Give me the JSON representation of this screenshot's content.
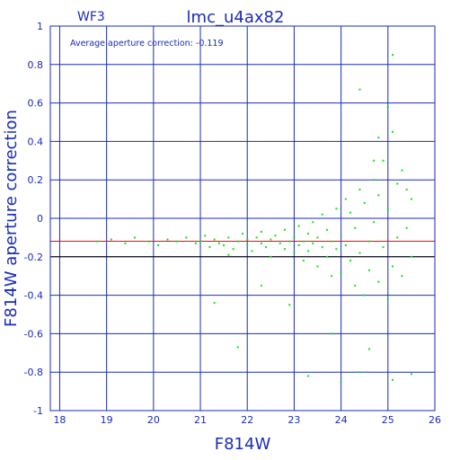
{
  "chart_data": {
    "type": "scatter",
    "title": "lmc_u4ax82",
    "camera_label": "WF3",
    "annotation": "Average aperture correction:  -0.119",
    "xlabel": "F814W",
    "ylabel": "F814W  aperture  correction",
    "xlim": [
      17.8,
      26
    ],
    "ylim": [
      -1,
      1
    ],
    "x_ticks": [
      "18",
      "19",
      "20",
      "21",
      "22",
      "23",
      "24",
      "25",
      "26"
    ],
    "y_ticks": [
      "1",
      "0.8",
      "0.6",
      "0.4",
      "0.2",
      "0",
      "-0.2",
      "-0.4",
      "-0.6",
      "-0.8",
      "-1"
    ],
    "grid": true,
    "reference_line": {
      "y": -0.119,
      "color": "#ff0000"
    },
    "highlight_line": {
      "y": -0.2,
      "color": "#000000"
    },
    "colors": {
      "axis": "#1a2bb8",
      "points": "#00ee00"
    },
    "points": [
      [
        18.8,
        -0.12
      ],
      [
        19.1,
        -0.11
      ],
      [
        19.4,
        -0.13
      ],
      [
        19.6,
        -0.1
      ],
      [
        19.9,
        -0.12
      ],
      [
        20.1,
        -0.14
      ],
      [
        20.3,
        -0.11
      ],
      [
        20.5,
        -0.12
      ],
      [
        20.7,
        -0.1
      ],
      [
        20.9,
        -0.13
      ],
      [
        21.0,
        -0.12
      ],
      [
        21.1,
        -0.09
      ],
      [
        21.2,
        -0.15
      ],
      [
        21.3,
        -0.11
      ],
      [
        21.4,
        -0.13
      ],
      [
        21.5,
        -0.14
      ],
      [
        21.6,
        -0.1
      ],
      [
        21.6,
        -0.19
      ],
      [
        21.7,
        -0.16
      ],
      [
        21.8,
        -0.12
      ],
      [
        21.9,
        -0.08
      ],
      [
        22.0,
        -0.14
      ],
      [
        22.0,
        -0.11
      ],
      [
        22.1,
        -0.17
      ],
      [
        22.2,
        -0.1
      ],
      [
        22.3,
        -0.13
      ],
      [
        22.3,
        -0.07
      ],
      [
        22.4,
        -0.15
      ],
      [
        22.5,
        -0.11
      ],
      [
        22.5,
        -0.2
      ],
      [
        22.6,
        -0.09
      ],
      [
        22.7,
        -0.13
      ],
      [
        22.8,
        -0.16
      ],
      [
        22.8,
        -0.06
      ],
      [
        22.9,
        -0.12
      ],
      [
        23.0,
        -0.18
      ],
      [
        23.0,
        -0.1
      ],
      [
        23.1,
        -0.14
      ],
      [
        23.1,
        -0.04
      ],
      [
        23.2,
        -0.22
      ],
      [
        23.2,
        -0.12
      ],
      [
        23.3,
        -0.08
      ],
      [
        23.3,
        -0.17
      ],
      [
        23.4,
        -0.13
      ],
      [
        23.4,
        -0.02
      ],
      [
        23.5,
        -0.25
      ],
      [
        23.5,
        -0.1
      ],
      [
        23.6,
        -0.15
      ],
      [
        23.6,
        0.02
      ],
      [
        23.7,
        -0.2
      ],
      [
        23.7,
        -0.06
      ],
      [
        23.8,
        -0.12
      ],
      [
        23.8,
        -0.3
      ],
      [
        23.9,
        0.05
      ],
      [
        23.9,
        -0.16
      ],
      [
        24.0,
        -0.09
      ],
      [
        24.0,
        -0.28
      ],
      [
        24.1,
        0.1
      ],
      [
        24.1,
        -0.14
      ],
      [
        24.2,
        -0.22
      ],
      [
        24.2,
        0.03
      ],
      [
        24.3,
        -0.35
      ],
      [
        24.3,
        -0.05
      ],
      [
        24.4,
        0.15
      ],
      [
        24.4,
        -0.18
      ],
      [
        24.5,
        -0.4
      ],
      [
        24.5,
        0.08
      ],
      [
        24.6,
        -0.12
      ],
      [
        24.6,
        -0.27
      ],
      [
        24.7,
        0.2
      ],
      [
        24.7,
        -0.02
      ],
      [
        24.8,
        -0.33
      ],
      [
        24.8,
        0.12
      ],
      [
        24.9,
        -0.15
      ],
      [
        24.9,
        0.3
      ],
      [
        25.0,
        -0.42
      ],
      [
        25.0,
        0.05
      ],
      [
        25.1,
        0.45
      ],
      [
        25.1,
        -0.25
      ],
      [
        25.2,
        0.18
      ],
      [
        25.2,
        -0.1
      ],
      [
        25.3,
        0.25
      ],
      [
        25.3,
        -0.3
      ],
      [
        25.4,
        0.15
      ],
      [
        25.4,
        -0.05
      ],
      [
        25.5,
        0.1
      ],
      [
        25.5,
        -0.2
      ],
      [
        21.3,
        -0.44
      ],
      [
        21.8,
        -0.67
      ],
      [
        22.3,
        -0.35
      ],
      [
        23.8,
        -0.6
      ],
      [
        24.0,
        -0.85
      ],
      [
        24.4,
        -0.8
      ],
      [
        24.6,
        -0.68
      ],
      [
        25.1,
        -0.84
      ],
      [
        25.5,
        -0.81
      ],
      [
        24.4,
        0.67
      ],
      [
        25.0,
        0.58
      ],
      [
        25.1,
        0.85
      ],
      [
        24.8,
        0.42
      ],
      [
        24.7,
        0.3
      ],
      [
        22.9,
        -0.45
      ],
      [
        23.3,
        -0.82
      ]
    ]
  }
}
